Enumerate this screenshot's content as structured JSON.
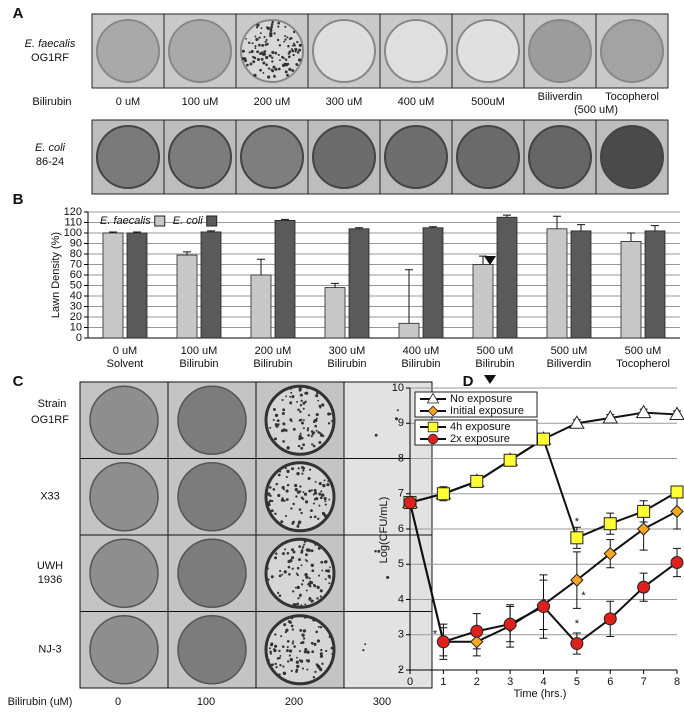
{
  "panel_a": {
    "label": "A",
    "strain_1": [
      "E. faecalis",
      "OG1RF"
    ],
    "row_label": "Bilirubin",
    "conditions": [
      "0 uM",
      "100 uM",
      "200 uM",
      "300 uM",
      "400 uM",
      "500uM",
      "Biliverdin",
      "Tocopherol"
    ],
    "condition_note": "(500 uM)",
    "strain_2": [
      "E. coli",
      "86-24"
    ]
  },
  "panel_c": {
    "label": "C",
    "row_header": "Strain",
    "strains": [
      [
        "OG1RF"
      ],
      [
        "X33"
      ],
      [
        "UWH",
        "1936"
      ],
      [
        "NJ-3"
      ]
    ],
    "column_header": "Bilirubin (uM)",
    "concentrations": [
      "0",
      "100",
      "200",
      "300"
    ]
  },
  "chart_data": [
    {
      "type": "bar",
      "panel_label": "B",
      "y_label": "Lawn Density (%)",
      "categories": [
        [
          "0 uM",
          "Solvent"
        ],
        [
          "100 uM",
          "Bilirubin"
        ],
        [
          "200 uM",
          "Bilirubin"
        ],
        [
          "300 uM",
          "Bilirubin"
        ],
        [
          "400 uM",
          "Bilirubin"
        ],
        [
          "500 uM",
          "Bilirubin"
        ],
        [
          "500 uM",
          "Biliverdin"
        ],
        [
          "500 uM",
          "Tocopherol"
        ]
      ],
      "series": [
        {
          "name": "E. faecalis",
          "color": "#c8c8c8",
          "values": [
            100,
            79,
            60,
            48,
            14,
            70,
            104,
            92
          ],
          "errors": [
            1,
            3,
            15,
            4,
            51,
            8,
            12,
            8
          ]
        },
        {
          "name": "E. coli",
          "color": "#5a5a5a",
          "values": [
            100,
            101,
            112,
            104,
            105,
            115,
            102,
            102
          ],
          "errors": [
            1,
            1,
            1,
            1,
            1,
            2,
            6,
            5
          ]
        }
      ],
      "ylim": [
        0,
        120
      ],
      "yticks": [
        0,
        10,
        20,
        30,
        40,
        50,
        60,
        70,
        80,
        90,
        100,
        110,
        120
      ],
      "grid": true,
      "legend": "top-left"
    },
    {
      "type": "line",
      "panel_label": "D",
      "x_label": "Time (hrs.)",
      "y_label": "Log(CFU/mL)",
      "x": [
        0,
        1,
        2,
        3,
        4,
        5,
        6,
        7,
        8
      ],
      "series": [
        {
          "name": "No exposure",
          "color": "#ffffff",
          "marker": "triangle",
          "values": [
            6.75,
            7.0,
            7.35,
            7.95,
            8.55,
            9.0,
            9.15,
            9.3,
            9.25
          ],
          "errors": [
            0.1,
            0.1,
            0.1,
            0.1,
            0.1,
            0.1,
            0.1,
            0.1,
            0.1
          ]
        },
        {
          "name": "Initial exposure",
          "color": "#f5a623",
          "marker": "diamond",
          "values": [
            6.75,
            2.8,
            2.8,
            3.25,
            3.85,
            4.55,
            5.3,
            6.0,
            6.5
          ],
          "errors": [
            0.1,
            0.5,
            0.4,
            0.6,
            0.7,
            0.8,
            0.4,
            0.6,
            0.5
          ]
        },
        {
          "name": "4h exposure",
          "color": "#ffff33",
          "marker": "square",
          "values": [
            6.75,
            7.0,
            7.35,
            7.95,
            8.55,
            5.75,
            6.15,
            6.5,
            7.05
          ],
          "errors": [
            0.1,
            0.2,
            0.1,
            0.1,
            0.1,
            0.3,
            0.3,
            0.3,
            0.1
          ]
        },
        {
          "name": "2x exposure",
          "color": "#e0201b",
          "marker": "circle",
          "values": [
            6.75,
            2.8,
            3.1,
            3.3,
            3.8,
            2.75,
            3.45,
            4.35,
            5.05
          ],
          "errors": [
            0.1,
            0.4,
            0.5,
            0.5,
            0.9,
            0.3,
            0.5,
            0.4,
            0.4
          ]
        }
      ],
      "annotations": [
        {
          "text": "*",
          "x": 0.75,
          "y": 3.0
        },
        {
          "text": "*",
          "x": 5.0,
          "y": 6.2
        },
        {
          "text": "*",
          "x": 5.2,
          "y": 4.1
        },
        {
          "text": "*",
          "x": 5.0,
          "y": 3.3
        }
      ],
      "xlim": [
        0,
        8
      ],
      "xticks": [
        0,
        1,
        2,
        3,
        4,
        5,
        6,
        7,
        8
      ],
      "ylim": [
        2,
        10
      ],
      "yticks": [
        2,
        3,
        4,
        5,
        6,
        7,
        8,
        9,
        10
      ],
      "grid": true,
      "legend": "top-left"
    }
  ]
}
